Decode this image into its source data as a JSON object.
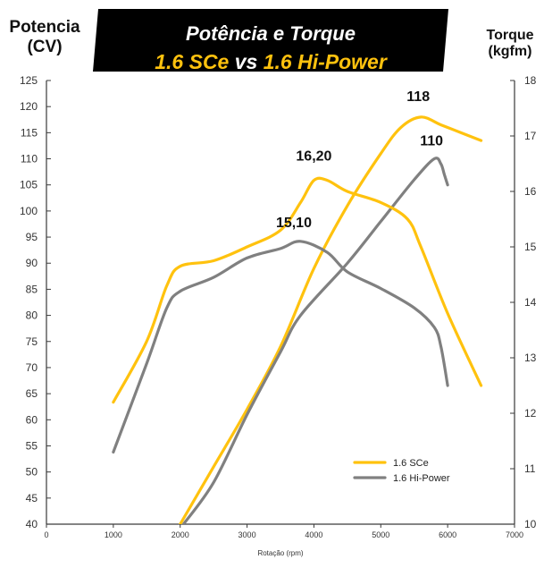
{
  "title": {
    "line1": "Potência e Torque",
    "line2_part1": "1.6 SCe",
    "line2_vs": "vs",
    "line2_part2": "1.6 Hi-Power"
  },
  "axes": {
    "left_label_line1": "Potencia",
    "left_label_line2": "(CV)",
    "right_label_line1": "Torque",
    "right_label_line2": "(kgfm)",
    "x_label": "Rotação (rpm)"
  },
  "colors": {
    "sce": "#FFC20E",
    "hipower": "#808080",
    "axis": "#3a3a3a",
    "banner": "#000000"
  },
  "chart_data": {
    "type": "line",
    "xlabel": "Rotação (rpm)",
    "ylabel": "Potencia (CV)",
    "y2label": "Torque (kgfm)",
    "xlim": [
      0,
      7000
    ],
    "ylim": [
      40,
      125
    ],
    "y2lim": [
      10,
      18
    ],
    "xticks": [
      0,
      1000,
      2000,
      3000,
      4000,
      5000,
      6000,
      7000
    ],
    "yticks": [
      40,
      45,
      50,
      55,
      60,
      65,
      70,
      75,
      80,
      85,
      90,
      95,
      100,
      105,
      110,
      115,
      120,
      125
    ],
    "y2ticks": [
      10,
      11,
      12,
      13,
      14,
      15,
      16,
      17,
      18
    ],
    "grid": false,
    "legend_position": "bottom-right",
    "series": [
      {
        "name": "1.6 SCe",
        "quantity": "power",
        "axis": "left",
        "color": "#FFC20E",
        "points": [
          [
            2000,
            40
          ],
          [
            2500,
            51
          ],
          [
            3000,
            62
          ],
          [
            3500,
            74
          ],
          [
            4000,
            89
          ],
          [
            4500,
            101
          ],
          [
            5000,
            111
          ],
          [
            5300,
            116
          ],
          [
            5600,
            118
          ],
          [
            5900,
            116.5
          ],
          [
            6200,
            115
          ],
          [
            6500,
            113.5
          ]
        ]
      },
      {
        "name": "1.6 Hi-Power",
        "quantity": "power",
        "axis": "left",
        "color": "#808080",
        "points": [
          [
            2050,
            40
          ],
          [
            2500,
            48
          ],
          [
            3000,
            61
          ],
          [
            3500,
            73
          ],
          [
            3800,
            80
          ],
          [
            4500,
            90
          ],
          [
            5000,
            98
          ],
          [
            5500,
            106
          ],
          [
            5800,
            110
          ],
          [
            5900,
            109
          ],
          [
            5950,
            107
          ],
          [
            6000,
            105
          ]
        ]
      },
      {
        "name": "1.6 SCe",
        "quantity": "torque",
        "axis": "right",
        "color": "#FFC20E",
        "points": [
          [
            1000,
            12.2
          ],
          [
            1500,
            13.3
          ],
          [
            1800,
            14.3
          ],
          [
            2000,
            14.65
          ],
          [
            2500,
            14.75
          ],
          [
            3000,
            15.0
          ],
          [
            3500,
            15.3
          ],
          [
            3800,
            15.8
          ],
          [
            4000,
            16.2
          ],
          [
            4200,
            16.2
          ],
          [
            4500,
            16.0
          ],
          [
            5000,
            15.8
          ],
          [
            5400,
            15.5
          ],
          [
            5600,
            15.0
          ],
          [
            6000,
            13.8
          ],
          [
            6500,
            12.5
          ]
        ]
      },
      {
        "name": "1.6 Hi-Power",
        "quantity": "torque",
        "axis": "right",
        "color": "#808080",
        "points": [
          [
            1000,
            11.3
          ],
          [
            1500,
            12.9
          ],
          [
            1800,
            13.9
          ],
          [
            2000,
            14.2
          ],
          [
            2500,
            14.45
          ],
          [
            3000,
            14.8
          ],
          [
            3500,
            14.97
          ],
          [
            3800,
            15.1
          ],
          [
            4200,
            14.9
          ],
          [
            4500,
            14.55
          ],
          [
            5000,
            14.25
          ],
          [
            5500,
            13.9
          ],
          [
            5800,
            13.55
          ],
          [
            5900,
            13.2
          ],
          [
            6000,
            12.5
          ]
        ]
      }
    ],
    "annotations": [
      {
        "text": "118",
        "x": 5600,
        "y": 118,
        "axis": "left",
        "color": "#111111"
      },
      {
        "text": "110",
        "x": 5800,
        "y": 110,
        "axis": "left",
        "color": "#111111"
      },
      {
        "text": "16,20",
        "x": 4000,
        "y": 16.2,
        "axis": "right",
        "color": "#111111"
      },
      {
        "text": "15,10",
        "x": 3700,
        "y": 15.1,
        "axis": "right",
        "color": "#111111"
      }
    ],
    "legend": [
      {
        "label": "1.6 SCe",
        "color": "#FFC20E"
      },
      {
        "label": "1.6 Hi-Power",
        "color": "#808080"
      }
    ]
  }
}
